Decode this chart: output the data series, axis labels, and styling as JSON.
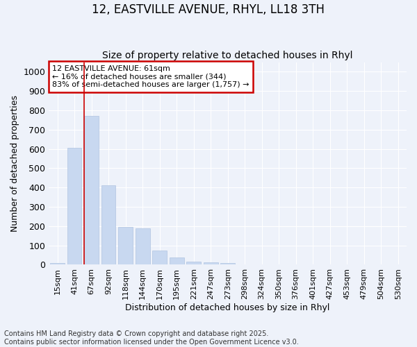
{
  "title_line1": "12, EASTVILLE AVENUE, RHYL, LL18 3TH",
  "title_line2": "Size of property relative to detached houses in Rhyl",
  "xlabel": "Distribution of detached houses by size in Rhyl",
  "ylabel": "Number of detached properties",
  "bar_color": "#c8d8f0",
  "bar_edge_color": "#b0c4e0",
  "categories": [
    "15sqm",
    "41sqm",
    "67sqm",
    "92sqm",
    "118sqm",
    "144sqm",
    "170sqm",
    "195sqm",
    "221sqm",
    "247sqm",
    "273sqm",
    "298sqm",
    "324sqm",
    "350sqm",
    "376sqm",
    "401sqm",
    "427sqm",
    "453sqm",
    "479sqm",
    "504sqm",
    "530sqm"
  ],
  "values": [
    10,
    605,
    770,
    410,
    195,
    190,
    75,
    38,
    15,
    12,
    10,
    0,
    0,
    0,
    0,
    0,
    0,
    0,
    0,
    0,
    0
  ],
  "ylim": [
    0,
    1050
  ],
  "yticks": [
    0,
    100,
    200,
    300,
    400,
    500,
    600,
    700,
    800,
    900,
    1000
  ],
  "vline_x_index": 2,
  "vline_color": "#cc0000",
  "annotation_text": "12 EASTVILLE AVENUE: 61sqm\n← 16% of detached houses are smaller (344)\n83% of semi-detached houses are larger (1,757) →",
  "annotation_box_color": "#ffffff",
  "annotation_box_edge": "#cc0000",
  "footnote": "Contains HM Land Registry data © Crown copyright and database right 2025.\nContains public sector information licensed under the Open Government Licence v3.0.",
  "background_color": "#eef2fa",
  "grid_color": "#ffffff",
  "title_fontsize": 12,
  "subtitle_fontsize": 10,
  "tick_fontsize": 8,
  "label_fontsize": 9,
  "footnote_fontsize": 7
}
